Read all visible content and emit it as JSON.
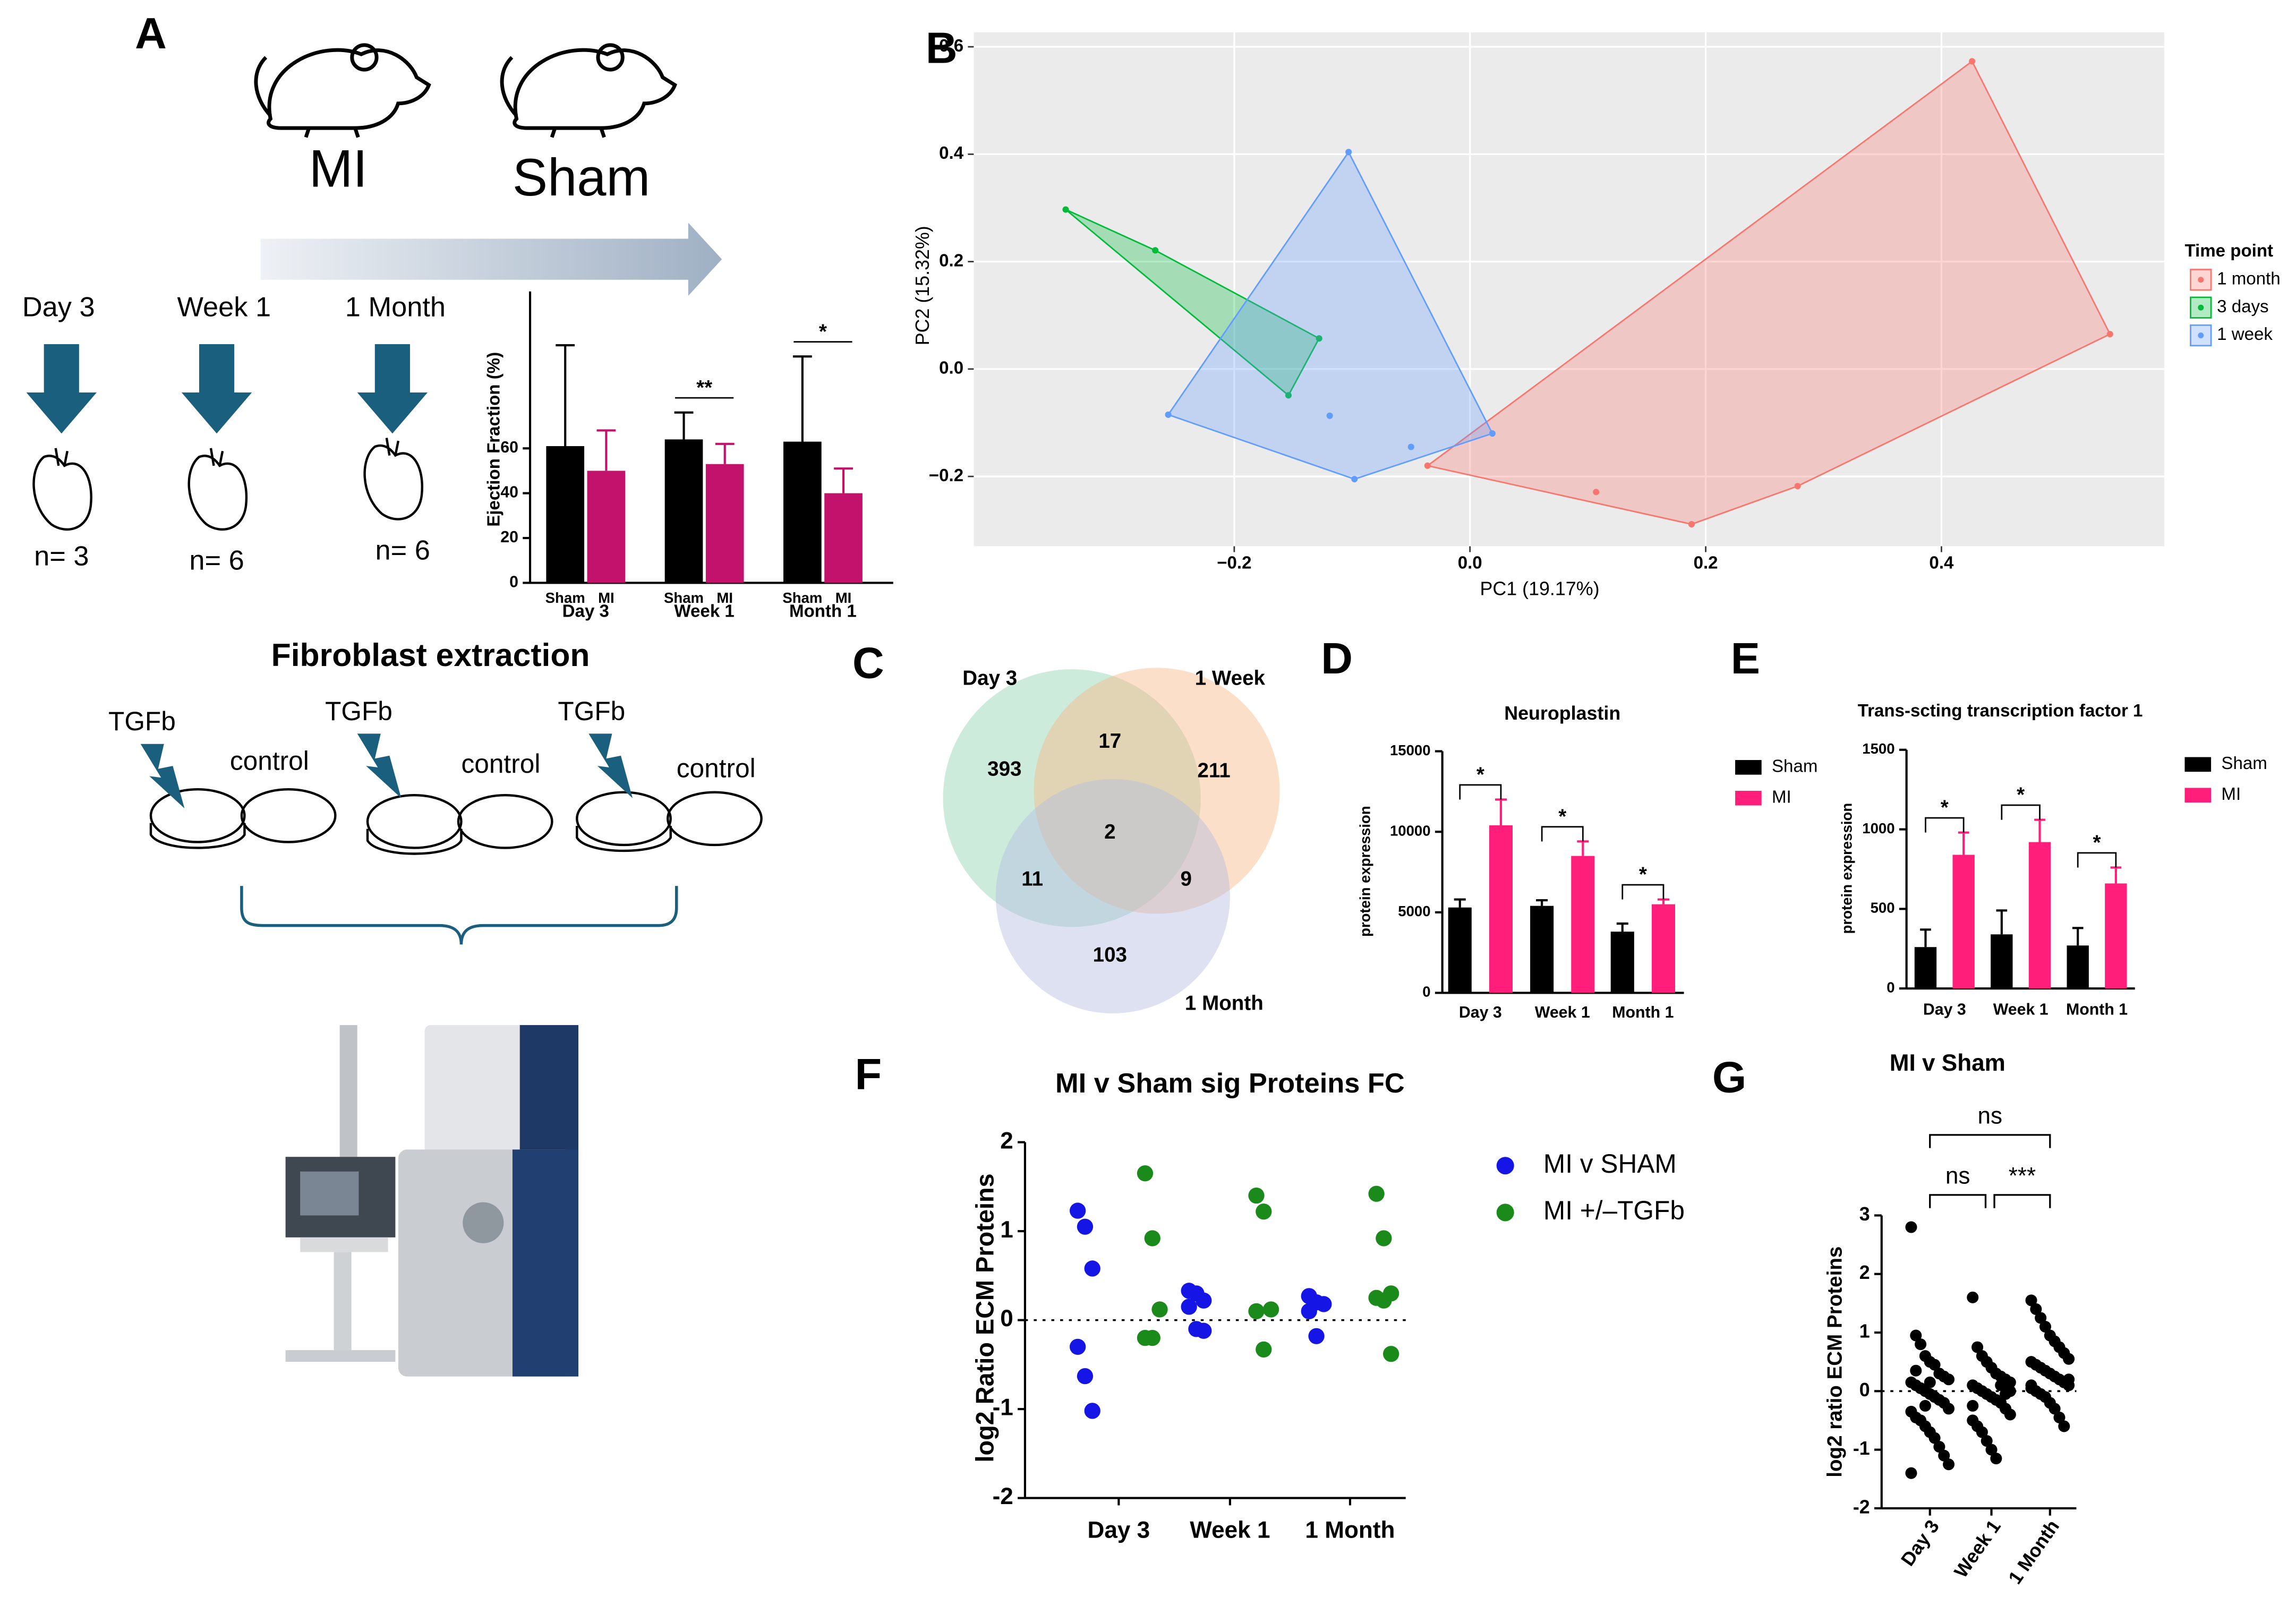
{
  "schematic": {
    "panel": "A",
    "groups": [
      "MI",
      "Sham"
    ],
    "timepoints": [
      "Day 3",
      "Week 1",
      "1 Month"
    ],
    "n_labels": [
      "n= 3",
      "n= 6",
      "n= 6"
    ],
    "step": "Fibroblast extraction",
    "treatment": "TGFb",
    "control": "control"
  },
  "chart_data": [
    {
      "type": "bar",
      "ylabel": "Ejection Fraction (%)",
      "categories": [
        "Day 3",
        "Week 1",
        "Month 1"
      ],
      "series": [
        {
          "name": "Sham",
          "color": "#000000",
          "values": [
            61,
            64,
            63
          ],
          "errors": [
            45,
            12,
            38
          ]
        },
        {
          "name": "MI",
          "color": "#c2126b",
          "values": [
            50,
            53,
            40
          ],
          "errors": [
            18,
            9,
            11
          ]
        }
      ],
      "significance": [
        null,
        "**",
        "*"
      ],
      "ylim": [
        0,
        130
      ],
      "yticks": [
        0,
        20,
        40,
        60
      ]
    },
    {
      "type": "scatter",
      "panel": "B",
      "xlabel": "PC1 (19.17%)",
      "ylabel": "PC2 (15.32%)",
      "legend_title": "Time point",
      "grid": true,
      "series": [
        {
          "name": "1 month",
          "color": "#f8766d",
          "x": [
            -0.036,
            0.107,
            0.188,
            0.278,
            0.426,
            0.543
          ],
          "y": [
            -0.18,
            -0.229,
            -0.289,
            -0.218,
            0.573,
            0.065
          ]
        },
        {
          "name": "3 days",
          "color": "#00ba38",
          "x": [
            -0.343,
            -0.267,
            -0.128,
            -0.154
          ],
          "y": [
            0.297,
            0.221,
            0.057,
            -0.049
          ]
        },
        {
          "name": "1 week",
          "color": "#619cff",
          "x": [
            -0.103,
            -0.256,
            -0.119,
            -0.098,
            -0.05,
            0.019
          ],
          "y": [
            0.404,
            -0.085,
            -0.087,
            -0.205,
            -0.145,
            -0.12
          ]
        }
      ],
      "xlim": [
        -0.421,
        0.589
      ],
      "ylim": [
        -0.33,
        0.627
      ],
      "xticks": [
        {
          "value": -0.2,
          "label": "−0.2"
        },
        {
          "value": 0,
          "label": "0.0"
        },
        0.2,
        0.4
      ],
      "yticks": [
        {
          "value": -0.2,
          "label": "−0.2"
        },
        {
          "value": 0,
          "label": "0.0"
        },
        0.2,
        0.4,
        0.6
      ]
    },
    {
      "type": "venn",
      "panel": "C",
      "sets": [
        "Day 3",
        "1 Week",
        "1 Month"
      ],
      "colors": [
        "#8fd3b0",
        "#f9b885",
        "#b3bce3"
      ],
      "counts": [
        393,
        17,
        211,
        2,
        11,
        9,
        103
      ]
    },
    {
      "type": "bar",
      "panel": "D",
      "title": "Neuroplastin",
      "ylabel": "protein expression",
      "legend": true,
      "categories": [
        "Day 3",
        "Week 1",
        "Month 1"
      ],
      "series": [
        {
          "name": "Sham",
          "color": "#000000",
          "values": [
            5300,
            5400,
            3800
          ],
          "errors": [
            500,
            350,
            500
          ]
        },
        {
          "name": "MI",
          "color": "#ff1f7a",
          "values": [
            10400,
            8500,
            5500
          ],
          "errors": [
            1600,
            900,
            300
          ]
        }
      ],
      "significance": [
        "*",
        "*",
        "*"
      ],
      "ylim": [
        0,
        15000
      ],
      "yticks": [
        0,
        5000,
        10000,
        15000
      ]
    },
    {
      "type": "bar",
      "panel": "E",
      "title": "Trans-scting transcription factor 1",
      "ylabel": "protein expression",
      "legend": true,
      "categories": [
        "Day 3",
        "Week 1",
        "Month 1"
      ],
      "series": [
        {
          "name": "Sham",
          "color": "#000000",
          "values": [
            260,
            340,
            270
          ],
          "errors": [
            110,
            150,
            110
          ]
        },
        {
          "name": "MI",
          "color": "#ff1f7a",
          "values": [
            840,
            920,
            660
          ],
          "errors": [
            140,
            140,
            100
          ]
        }
      ],
      "significance": [
        "*",
        "*",
        "*"
      ],
      "ylim": [
        0,
        1500
      ],
      "yticks": [
        0,
        500,
        1000,
        1500
      ]
    },
    {
      "type": "strip",
      "panel": "F",
      "title": "MI v Sham sig Proteins FC",
      "ylabel": "log2 Ratio ECM Proteins",
      "legend": true,
      "zero_line": true,
      "categories": [
        "Day 3",
        "Week 1",
        "1 Month"
      ],
      "series": [
        {
          "name": "MI v SHAM",
          "color": "#1515e6",
          "values": [
            [
              1.23,
              1.05,
              0.58,
              -0.3,
              -0.63,
              -1.02
            ],
            [
              0.33,
              0.3,
              0.22,
              0.15,
              -0.1,
              -0.12
            ],
            [
              0.27,
              0.2,
              0.18,
              0.1,
              -0.18
            ]
          ]
        },
        {
          "name": "MI +/–TGFb",
          "color": "#1a8a1a",
          "values": [
            [
              1.65,
              0.92,
              0.12,
              -0.2,
              -0.2
            ],
            [
              1.4,
              1.22,
              0.12,
              0.1,
              -0.33
            ],
            [
              1.42,
              0.92,
              0.3,
              0.25,
              0.22,
              -0.38
            ]
          ]
        }
      ],
      "ylim": [
        -2,
        2
      ],
      "yticks": [
        -2,
        -1,
        0,
        1,
        2
      ]
    },
    {
      "type": "strip",
      "panel": "G",
      "title": "MI v Sham",
      "ylabel": "log2 ratio ECM Proteins",
      "zero_line": true,
      "categories": [
        "Day 3",
        "Week 1",
        "1 Month"
      ],
      "annotations": [
        "ns",
        "ns",
        "***"
      ],
      "series": [
        {
          "name": "MI v Sham",
          "color": "#000000",
          "values": [
            [
              2.8,
              0.95,
              0.8,
              0.6,
              0.5,
              0.45,
              0.3,
              0.25,
              0.2,
              0.15,
              0.1,
              0.05,
              0,
              -0.05,
              -0.1,
              -0.15,
              -0.2,
              -0.3,
              -0.35,
              -0.45,
              -0.5,
              -0.6,
              -0.7,
              -0.8,
              -0.95,
              -1.1,
              -1.25,
              -1.4,
              0.35,
              0.05,
              -0.25,
              0.15
            ],
            [
              1.6,
              0.75,
              0.6,
              0.5,
              0.4,
              0.3,
              0.25,
              0.2,
              0.15,
              0.1,
              0.05,
              0,
              -0.05,
              -0.1,
              -0.15,
              -0.2,
              -0.3,
              -0.4,
              -0.5,
              -0.6,
              -0.7,
              -0.85,
              -1,
              -1.15,
              0.1,
              -0.05,
              0,
              -0.25
            ],
            [
              1.55,
              1.4,
              1.25,
              1.1,
              0.95,
              0.85,
              0.75,
              0.65,
              0.55,
              0.5,
              0.45,
              0.4,
              0.35,
              0.3,
              0.25,
              0.2,
              0.15,
              0.1,
              0.05,
              0,
              -0.05,
              -0.1,
              -0.2,
              -0.3,
              -0.45,
              -0.6,
              0.2,
              0.1
            ]
          ]
        }
      ],
      "ylim": [
        -2,
        3
      ],
      "yticks": [
        -2,
        -1,
        0,
        1,
        2,
        3
      ]
    }
  ]
}
